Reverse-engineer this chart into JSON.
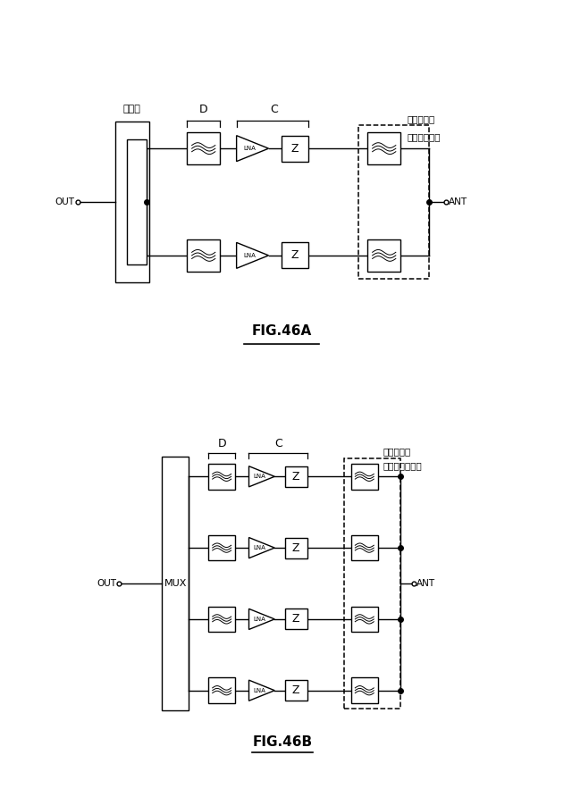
{
  "bg_color": "#ffffff",
  "line_color": "#000000",
  "fig_title_a": "FIG.46A",
  "fig_title_b": "FIG.46B",
  "label_out": "OUT",
  "label_ant": "ANT",
  "label_mux": "MUX",
  "label_coupler": "結合器",
  "label_D": "D",
  "label_C": "C",
  "label_filter_diplex_1": "フィルタ／",
  "label_filter_diplex_2": "ダイプレクサ",
  "label_filter_multiplex_1": "フィルタ／",
  "label_filter_multiplex_2": "マルチプレクサ",
  "label_lna": "LNA",
  "label_z": "Z"
}
